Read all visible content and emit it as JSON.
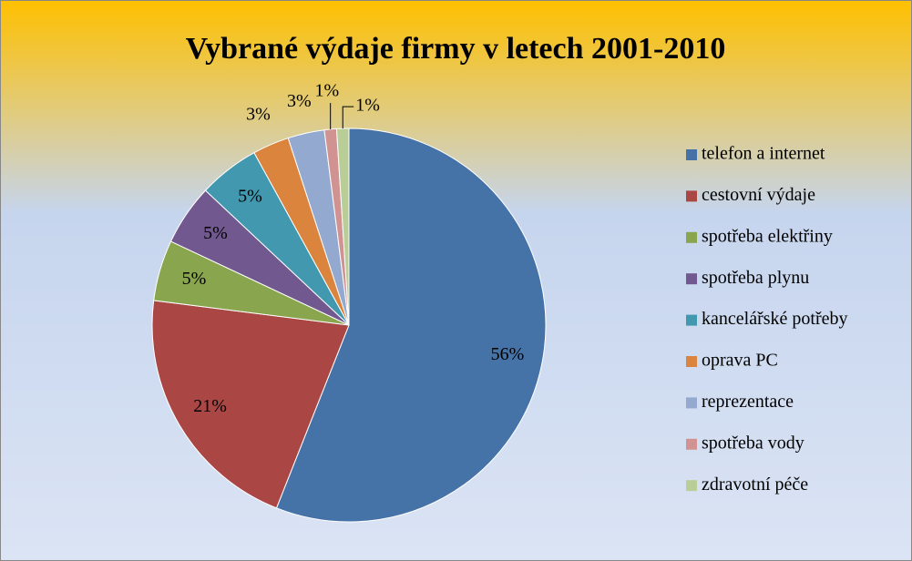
{
  "chart_data": {
    "type": "pie",
    "title": "Vybrané výdaje firmy v letech 2001-2010",
    "categories": [
      "telefon a internet",
      "cestovní výdaje",
      "spotřeba elektřiny",
      "spotřeba plynu",
      "kancelářské potřeby",
      "oprava PC",
      "reprezentace",
      "spotřeba vody",
      "zdravotní péče"
    ],
    "values": [
      56,
      21,
      5,
      5,
      5,
      3,
      3,
      1,
      1
    ],
    "value_labels": [
      "56%",
      "21%",
      "5%",
      "5%",
      "5%",
      "3%",
      "3%",
      "1%",
      "1%"
    ],
    "colors": [
      "#4572a7",
      "#aa4643",
      "#89a54e",
      "#71588f",
      "#4198af",
      "#db843d",
      "#93a9cf",
      "#d19392",
      "#b9cd96"
    ],
    "legend": "right"
  }
}
